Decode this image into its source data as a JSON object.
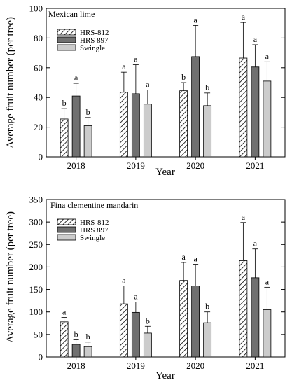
{
  "chart_data": [
    {
      "type": "bar",
      "title": "Mexican lime",
      "xlabel": "Year",
      "ylabel": "Average fruit number (per tree)",
      "categories": [
        "2018",
        "2019",
        "2020",
        "2021"
      ],
      "ylim": [
        0,
        100
      ],
      "yticks": [
        0,
        20,
        40,
        60,
        80,
        100
      ],
      "legend": "top-left",
      "grid": false,
      "series": [
        {
          "name": "HRS-812",
          "values": [
            25.5,
            43.5,
            44.5,
            66.5
          ],
          "errors": [
            7,
            13.5,
            5.5,
            24
          ],
          "letters": [
            "b",
            "a",
            "b",
            "a"
          ],
          "fill": "hatch"
        },
        {
          "name": "HRS 897",
          "values": [
            41,
            42.5,
            67.5,
            60.5
          ],
          "errors": [
            8.5,
            19.5,
            21,
            15
          ],
          "letters": [
            "a",
            "a",
            "a",
            "a"
          ],
          "color": "#707070"
        },
        {
          "name": "Swingle",
          "values": [
            21,
            35.5,
            34.5,
            51
          ],
          "errors": [
            5.5,
            9.5,
            8.5,
            13
          ],
          "letters": [
            "b",
            "a",
            "b",
            "a"
          ],
          "color": "#cccccc"
        }
      ]
    },
    {
      "type": "bar",
      "title": "Fina clementine mandarin",
      "xlabel": "Year",
      "ylabel": "Average fruit number (per tree)",
      "categories": [
        "2018",
        "2019",
        "2020",
        "2021"
      ],
      "ylim": [
        0,
        350
      ],
      "yticks": [
        0,
        50,
        100,
        150,
        200,
        250,
        300,
        350
      ],
      "legend": "top-left",
      "grid": false,
      "series": [
        {
          "name": "HRS-812",
          "values": [
            78,
            118,
            170,
            214
          ],
          "errors": [
            10,
            40,
            40,
            85
          ],
          "letters": [
            "a",
            "a",
            "a",
            "a"
          ],
          "fill": "hatch"
        },
        {
          "name": "HRS 897",
          "values": [
            28,
            99,
            158,
            176
          ],
          "errors": [
            10,
            23,
            48,
            64
          ],
          "letters": [
            "b",
            "a",
            "a",
            "a"
          ],
          "color": "#707070"
        },
        {
          "name": "Swingle",
          "values": [
            23,
            53,
            76,
            105
          ],
          "errors": [
            10,
            15,
            24,
            50
          ],
          "letters": [
            "b",
            "b",
            "b",
            "a"
          ],
          "color": "#cccccc"
        }
      ]
    }
  ]
}
